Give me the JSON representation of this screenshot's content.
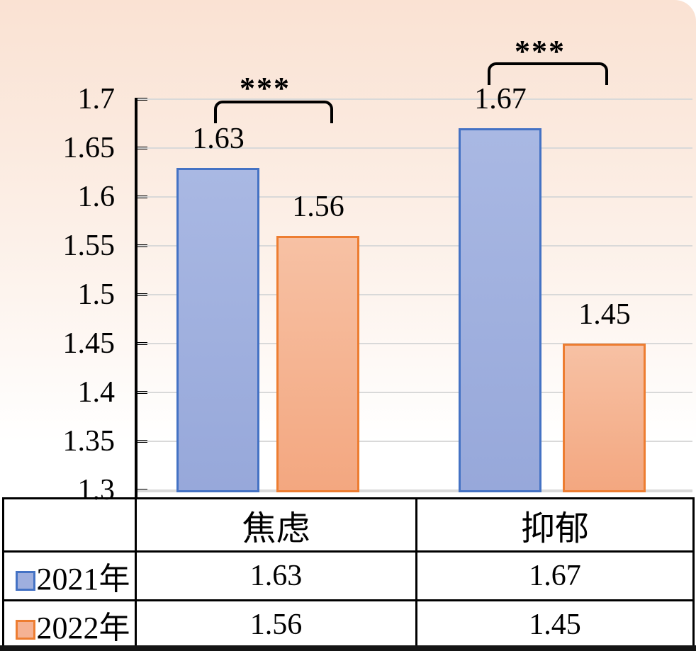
{
  "chart_data": {
    "type": "bar",
    "title": "",
    "categories": [
      "焦虑",
      "抑郁"
    ],
    "series": [
      {
        "name": "2021年",
        "values": [
          1.63,
          1.67
        ],
        "fill": "#9fafde",
        "border": "#4472c4"
      },
      {
        "name": "2022年",
        "values": [
          1.56,
          1.45
        ],
        "fill": "#f5b294",
        "border": "#ed7d31"
      }
    ],
    "ylim": [
      1.3,
      1.7
    ],
    "ytick_step": 0.05,
    "ytick_labels": [
      "1.3",
      "1.35",
      "1.4",
      "1.45",
      "1.5",
      "1.55",
      "1.6",
      "1.65",
      "1.7"
    ],
    "grid": true,
    "legend_position": "table-rows-left",
    "data_labels": [
      "1.63",
      "1.56",
      "1.67",
      "1.45"
    ],
    "annotations": [
      {
        "text": "***",
        "between": "2021年-2022年",
        "group": "焦虑"
      },
      {
        "text": "***",
        "between": "2021年-2022年",
        "group": "抑郁"
      }
    ]
  },
  "colors": {
    "background_top": "#fae2d3",
    "background_bottom": "#ffffff",
    "gridline": "#d9d9d9",
    "axis": "#000000",
    "table_border": "#000000",
    "bottom_bar": "#151515",
    "series_2021_fill": "#9fafde",
    "series_2021_border": "#4472c4",
    "series_2022_fill": "#f5b294",
    "series_2022_border": "#ed7d31"
  }
}
